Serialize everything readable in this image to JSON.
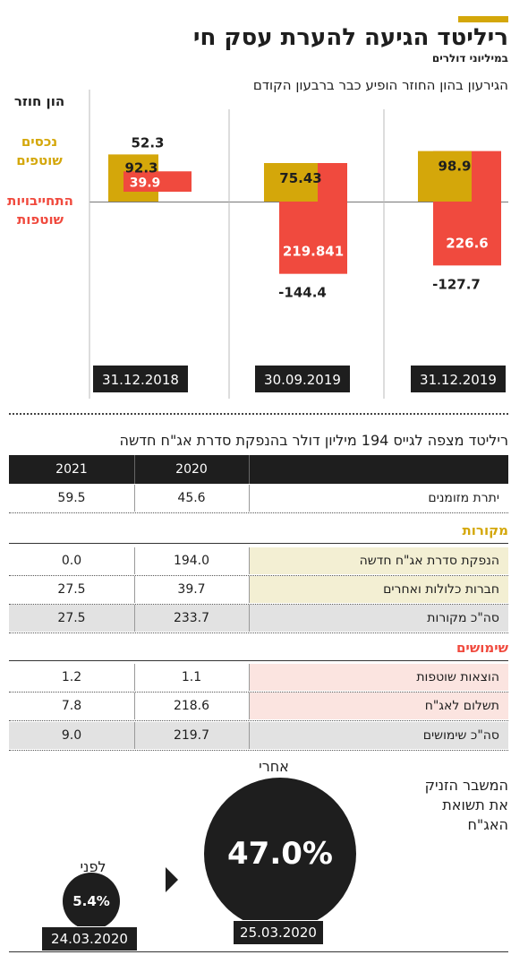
{
  "header": {
    "title": "ריליטד הגיעה להערת עסק חי",
    "subtitle": "במיליוני דולרים",
    "chart_subtitle": "הגירעון בהון החוזר הופיע כבר ברבעון הקודם"
  },
  "legend": {
    "working_capital": "הון חוזר",
    "current_assets": "נכסים\nשוטפים",
    "current_liabilities": "התחייבויות\nשוטפות"
  },
  "colors": {
    "assets": "#d4a70a",
    "liabilities": "#f04a3e",
    "dark": "#1e1e1e",
    "sources_fill": "#f3efd3",
    "uses_fill": "#fbe4e0",
    "total_fill": "#e2e2e2"
  },
  "chart_data": {
    "type": "bar",
    "categories": [
      "31.12.2018",
      "30.09.2019",
      "31.12.2019"
    ],
    "series": [
      {
        "name": "נכסים שוטפים",
        "values": [
          92.3,
          75.43,
          98.9
        ]
      },
      {
        "name": "התחייבויות שוטפות",
        "values": [
          39.9,
          219.841,
          226.6
        ]
      },
      {
        "name": "הון חוזר",
        "values": [
          52.3,
          -144.4,
          -127.7
        ]
      }
    ],
    "value_labels": {
      "assets": [
        "92.3",
        "75.43",
        "98.9"
      ],
      "liabilities": [
        "39.9",
        "219.841",
        "226.6"
      ],
      "working_capital": [
        "52.3",
        "-144.4",
        "-127.7"
      ]
    }
  },
  "table": {
    "title": "ריליטד מצפה לגייס 194 מיליון דולר בהנפקת סדרת אג\"ח חדשה",
    "col_2020": "2020",
    "col_2021": "2021",
    "cash_row": {
      "label": "יתרת מזומנים",
      "v2020": "45.6",
      "v2021": "59.5"
    },
    "sources_head": "מקורות",
    "sources": [
      {
        "label": "הנפקת סדרת אג\"ח חדשה",
        "v2020": "194.0",
        "v2021": "0.0"
      },
      {
        "label": "חברות כלולות ואחרים",
        "v2020": "39.7",
        "v2021": "27.5"
      },
      {
        "label": "סה\"כ מקורות",
        "v2020": "233.7",
        "v2021": "27.5"
      }
    ],
    "uses_head": "שימושים",
    "uses": [
      {
        "label": "הוצאות שוטפות",
        "v2020": "1.1",
        "v2021": "1.2"
      },
      {
        "label": "תשלום לאג\"ח",
        "v2020": "218.6",
        "v2021": "7.8"
      },
      {
        "label": "סה\"כ שימושים",
        "v2020": "219.7",
        "v2021": "9.0"
      }
    ]
  },
  "yield_compare": {
    "caption": "המשבר הזניק\nאת תשואת\nהאג\"ח",
    "before_label": "לפני",
    "before_value": "5.4%",
    "before_date": "24.03.2020",
    "after_label": "אחרי",
    "after_value": "47.0%",
    "after_date": "25.03.2020",
    "arrow_icon": "triangle-right"
  }
}
